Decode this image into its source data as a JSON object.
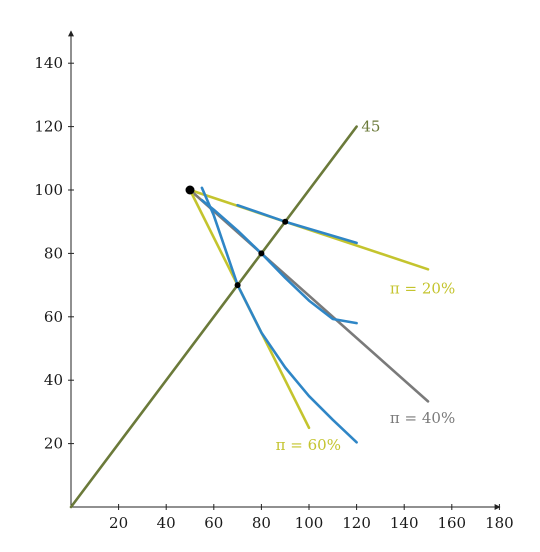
{
  "chart_data": {
    "type": "line",
    "xlim": [
      0,
      180
    ],
    "ylim": [
      0,
      150
    ],
    "x_ticks": [
      "20",
      "40",
      "60",
      "80",
      "100",
      "120",
      "140",
      "160",
      "180"
    ],
    "y_ticks": [
      "20",
      "40",
      "60",
      "80",
      "100",
      "120",
      "140"
    ],
    "grid": false,
    "colors": {
      "olive": "#6b7a3a",
      "yellow": "#c4c42e",
      "gray": "#7a7a7a",
      "blue": "#2f86c6",
      "axis": "#222222"
    },
    "series": [
      {
        "color": "olive",
        "points": [
          [
            0,
            0
          ],
          [
            120,
            120
          ]
        ]
      },
      {
        "color": "yellow",
        "points": [
          [
            50,
            100
          ],
          [
            150,
            75
          ]
        ]
      },
      {
        "color": "gray",
        "points": [
          [
            50,
            100
          ],
          [
            150,
            33.3
          ]
        ]
      },
      {
        "color": "yellow",
        "points": [
          [
            50,
            100
          ],
          [
            100,
            25
          ]
        ]
      },
      {
        "color": "blue",
        "points": [
          [
            70,
            95.2
          ],
          [
            90,
            90
          ],
          [
            120,
            83.3
          ]
        ]
      },
      {
        "color": "blue",
        "points": [
          [
            55,
            96.8
          ],
          [
            60,
            93.8
          ],
          [
            70,
            87.2
          ],
          [
            80,
            80
          ],
          [
            90,
            72.3
          ],
          [
            100,
            65.1
          ],
          [
            110,
            59.3
          ],
          [
            120,
            58
          ]
        ]
      },
      {
        "color": "blue",
        "points": [
          [
            55,
            100.7
          ],
          [
            60,
            92
          ],
          [
            70,
            70
          ],
          [
            80,
            55
          ],
          [
            90,
            44
          ],
          [
            100,
            35
          ],
          [
            110,
            27.5
          ],
          [
            120,
            20.4
          ]
        ]
      }
    ],
    "point_markers": [
      [
        90,
        90
      ],
      [
        80,
        80
      ],
      [
        70,
        70
      ]
    ],
    "start_point": [
      50,
      100
    ],
    "annotations": [
      {
        "text": "45",
        "x": 122,
        "y": 120,
        "color": "olive"
      },
      {
        "text": "π = 20%",
        "x": 134,
        "y": 69,
        "color": "yellow"
      },
      {
        "text": "π = 40%",
        "x": 134,
        "y": 28,
        "color": "gray"
      },
      {
        "text": "π = 60%",
        "x": 86,
        "y": 19.5,
        "color": "yellow"
      }
    ]
  }
}
